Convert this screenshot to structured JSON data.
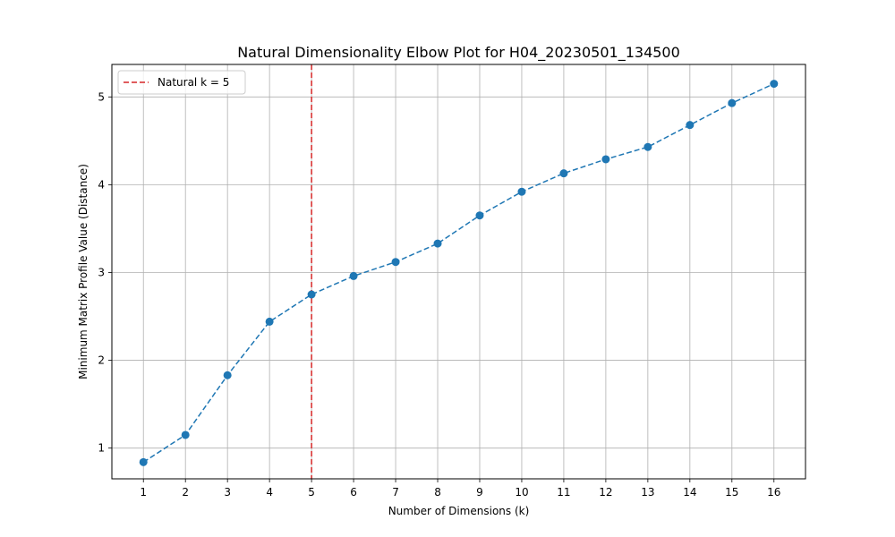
{
  "chart_data": {
    "type": "line",
    "title": "Natural Dimensionality Elbow Plot for H04_20230501_134500",
    "xlabel": "Number of Dimensions (k)",
    "ylabel": "Minimum Matrix Profile Value (Distance)",
    "x": [
      1,
      2,
      3,
      4,
      5,
      6,
      7,
      8,
      9,
      10,
      11,
      12,
      13,
      14,
      15,
      16
    ],
    "series": [
      {
        "values": [
          0.84,
          1.15,
          1.83,
          2.44,
          2.75,
          2.96,
          3.12,
          3.33,
          3.65,
          3.92,
          4.13,
          4.29,
          4.43,
          4.68,
          4.93,
          5.15
        ],
        "color": "#1f77b4",
        "line_style": "dashed",
        "marker": "circle"
      }
    ],
    "xlim": [
      0.25,
      16.75
    ],
    "ylim": [
      0.65,
      5.37
    ],
    "xticks": [
      1,
      2,
      3,
      4,
      5,
      6,
      7,
      8,
      9,
      10,
      11,
      12,
      13,
      14,
      15,
      16
    ],
    "yticks": [
      1,
      2,
      3,
      4,
      5
    ],
    "grid": true,
    "vline": {
      "x": 5,
      "label": "Natural k = 5",
      "color": "#d62728",
      "line_style": "dashed"
    },
    "legend": {
      "placement": "top-left"
    }
  }
}
